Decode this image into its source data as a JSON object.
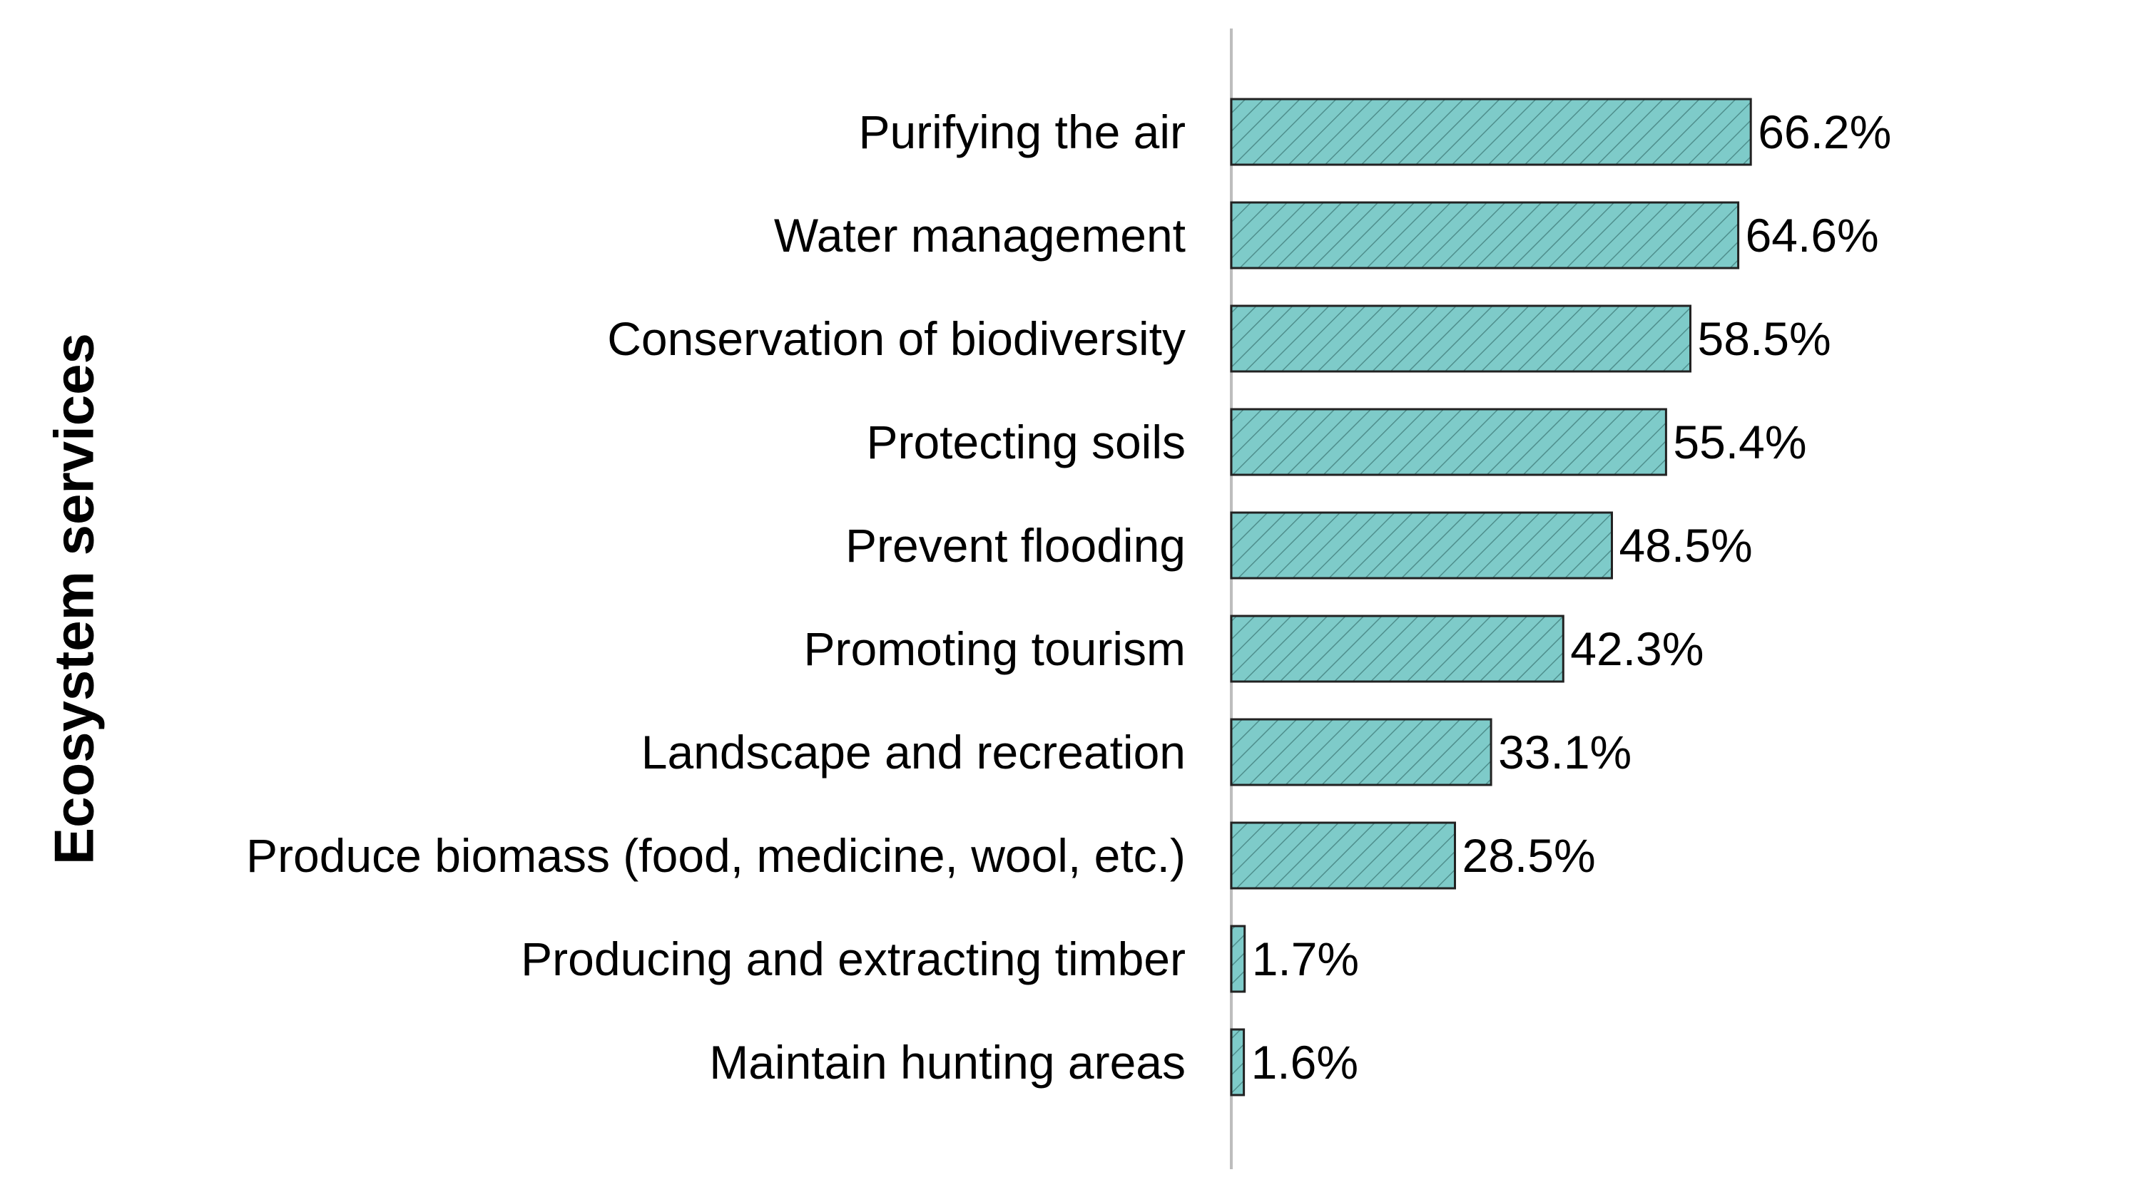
{
  "chart_data": {
    "type": "bar",
    "orientation": "horizontal",
    "title": "",
    "xlabel": "",
    "ylabel": "Ecosystem services",
    "categories": [
      "Purifying the air",
      "Water management",
      "Conservation of biodiversity",
      "Protecting soils",
      "Prevent flooding",
      "Promoting tourism",
      "Landscape and recreation",
      "Produce biomass (food, medicine, wool, etc.)",
      "Producing and extracting timber",
      "Maintain hunting areas"
    ],
    "values": [
      66.2,
      64.6,
      58.5,
      55.4,
      48.5,
      42.3,
      33.1,
      28.5,
      1.7,
      1.6
    ],
    "data_labels": [
      "66.2%",
      "64.6%",
      "58.5%",
      "55.4%",
      "48.5%",
      "42.3%",
      "33.1%",
      "28.5%",
      "1.7%",
      "1.6%"
    ],
    "xlim": [
      0,
      100
    ],
    "grid": false,
    "legend": "none",
    "bar_fill_color": "#7ecbc9",
    "bar_hatch_color": "#4f8f8d",
    "bar_edge_color": "#222222"
  }
}
